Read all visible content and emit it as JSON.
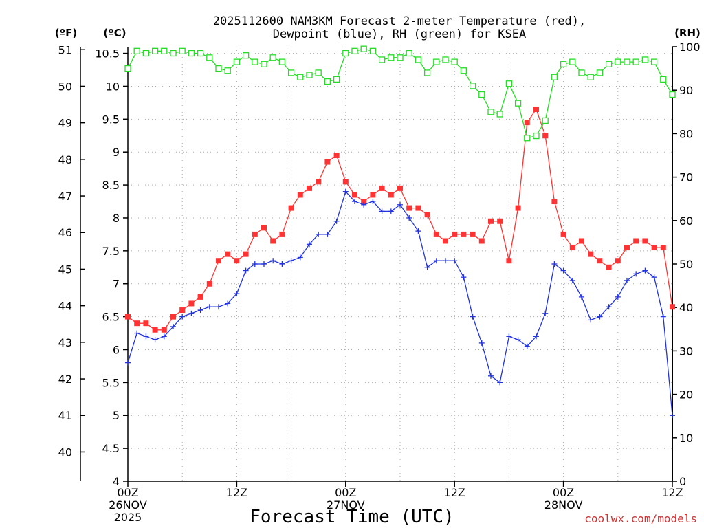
{
  "colors": {
    "temp": "#ff3333",
    "dewpoint": "#2233dd",
    "rh": "#22dd22",
    "credit": "#cc3333"
  },
  "chart_data": {
    "type": "line",
    "title": [
      "2025112600 NAM3KM Forecast 2-meter Temperature (red),",
      "Dewpoint (blue), RH (green) for KSEA"
    ],
    "xlabel": "Forecast Time (UTC)",
    "credit": "coolwx.com/models",
    "units": {
      "f": "(ºF)",
      "c": "(ºC)",
      "rh": "(RH)"
    },
    "xlim": [
      0,
      60
    ],
    "x_ticks": [
      {
        "x": 0,
        "lines": [
          "00Z",
          "26NOV",
          "2025"
        ]
      },
      {
        "x": 12,
        "lines": [
          "12Z"
        ]
      },
      {
        "x": 24,
        "lines": [
          "00Z",
          "27NOV"
        ]
      },
      {
        "x": 36,
        "lines": [
          "12Z"
        ]
      },
      {
        "x": 48,
        "lines": [
          "00Z",
          "28NOV"
        ]
      },
      {
        "x": 60,
        "lines": [
          "12Z"
        ]
      }
    ],
    "c_axis": {
      "range": [
        4,
        10.6
      ],
      "ticks": [
        "4",
        "4.5",
        "5",
        "5.5",
        "6",
        "6.5",
        "7",
        "7.5",
        "8",
        "8.5",
        "9",
        "9.5",
        "10",
        "10.5"
      ]
    },
    "f_axis": {
      "ticks": [
        "40",
        "41",
        "42",
        "43",
        "44",
        "45",
        "46",
        "47",
        "48",
        "49",
        "50",
        "51"
      ]
    },
    "rh_axis": {
      "range": [
        0,
        100
      ],
      "ticks": [
        "0",
        "10",
        "20",
        "30",
        "40",
        "50",
        "60",
        "70",
        "80",
        "90",
        "100"
      ]
    },
    "x": [
      0,
      1,
      2,
      3,
      4,
      5,
      6,
      7,
      8,
      9,
      10,
      11,
      12,
      13,
      14,
      15,
      16,
      17,
      18,
      19,
      20,
      21,
      22,
      23,
      24,
      25,
      26,
      27,
      28,
      29,
      30,
      31,
      32,
      33,
      34,
      35,
      36,
      37,
      38,
      39,
      40,
      41,
      42,
      43,
      44,
      45,
      46,
      47,
      48,
      49,
      50,
      51,
      52,
      53,
      54,
      55,
      56,
      57,
      58,
      59,
      60
    ],
    "series": [
      {
        "name": "Temperature",
        "axis": "c",
        "marker": "filled-square",
        "values": [
          6.5,
          6.4,
          6.4,
          6.3,
          6.3,
          6.5,
          6.6,
          6.7,
          6.8,
          7.0,
          7.35,
          7.45,
          7.35,
          7.45,
          7.75,
          7.85,
          7.65,
          7.75,
          8.15,
          8.35,
          8.45,
          8.55,
          8.85,
          8.95,
          8.55,
          8.35,
          8.25,
          8.35,
          8.45,
          8.35,
          8.45,
          8.15,
          8.15,
          8.05,
          7.75,
          7.65,
          7.75,
          7.75,
          7.75,
          7.65,
          7.95,
          7.95,
          7.35,
          8.15,
          9.45,
          9.65,
          9.25,
          8.25,
          7.75,
          7.55,
          7.65,
          7.45,
          7.35,
          7.25,
          7.35,
          7.55,
          7.65,
          7.65,
          7.55,
          7.55,
          6.65
        ]
      },
      {
        "name": "Dewpoint",
        "axis": "c",
        "marker": "plus",
        "values": [
          5.8,
          6.25,
          6.2,
          6.15,
          6.2,
          6.35,
          6.5,
          6.55,
          6.6,
          6.65,
          6.65,
          6.7,
          6.85,
          7.2,
          7.3,
          7.3,
          7.35,
          7.3,
          7.35,
          7.4,
          7.6,
          7.75,
          7.75,
          7.95,
          8.4,
          8.25,
          8.2,
          8.25,
          8.1,
          8.1,
          8.2,
          8.0,
          7.8,
          7.25,
          7.35,
          7.35,
          7.35,
          7.1,
          6.5,
          6.1,
          5.6,
          5.5,
          6.2,
          6.15,
          6.05,
          6.2,
          6.55,
          7.3,
          7.2,
          7.05,
          6.8,
          6.45,
          6.5,
          6.65,
          6.8,
          7.05,
          7.15,
          7.2,
          7.1,
          6.5,
          5.0
        ]
      },
      {
        "name": "RH",
        "axis": "rh",
        "marker": "open-square",
        "values": [
          95,
          99,
          98.5,
          99,
          99,
          98.5,
          99,
          98.5,
          98.5,
          97.5,
          95,
          94.5,
          96.5,
          98,
          96.5,
          96,
          97.5,
          96.5,
          94,
          93,
          93.5,
          94,
          92,
          92.5,
          98.5,
          99,
          99.5,
          99,
          97,
          97.5,
          97.5,
          98.5,
          97,
          94,
          96.5,
          97,
          96.5,
          94.5,
          91,
          89,
          85,
          84.5,
          91.5,
          87,
          79,
          79.5,
          83,
          93,
          96,
          96.5,
          94,
          93,
          94,
          96,
          96.5,
          96.5,
          96.5,
          97,
          96.5,
          92.5,
          89
        ]
      }
    ]
  }
}
